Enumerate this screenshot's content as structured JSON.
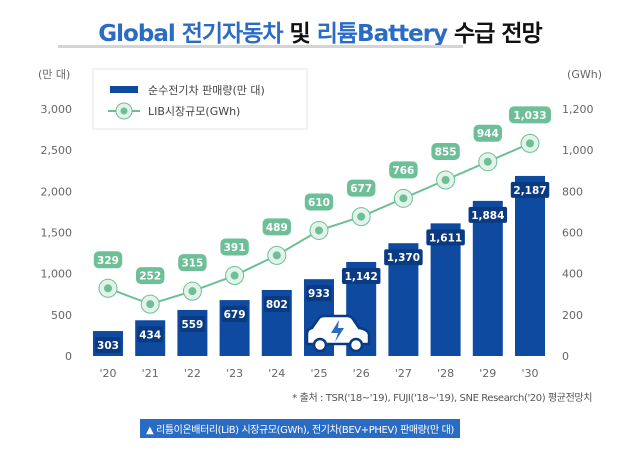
{
  "title": {
    "part1": "Global 전기자동차",
    "part2": " 및 ",
    "part3": "리튬Battery",
    "part4": " 수급 전망"
  },
  "chart_data": {
    "type": "bar+line",
    "categories": [
      "'20",
      "'21",
      "'22",
      "'23",
      "'24",
      "'25",
      "'26",
      "'27",
      "'28",
      "'29",
      "'30"
    ],
    "series": [
      {
        "name": "순수전기차 판매량(만 대)",
        "type": "bar",
        "axis": "left",
        "values": [
          303,
          434,
          559,
          679,
          802,
          933,
          1142,
          1370,
          1611,
          1884,
          2187
        ],
        "labels": [
          "303",
          "434",
          "559",
          "679",
          "802",
          "933",
          "1,142",
          "1,370",
          "1,611",
          "1,884",
          "2,187"
        ],
        "color": "#0d4aa0"
      },
      {
        "name": "LIB시장규모(GWh)",
        "type": "line",
        "axis": "right",
        "values": [
          329,
          252,
          315,
          391,
          489,
          610,
          677,
          766,
          855,
          944,
          1033
        ],
        "labels": [
          "329",
          "252",
          "315",
          "391",
          "489",
          "610",
          "677",
          "766",
          "855",
          "944",
          "1,033"
        ],
        "color": "#6dbf98"
      }
    ],
    "left_axis": {
      "unit": "(만 대)",
      "ylim": [
        0,
        3000
      ],
      "ticks": [
        "0",
        "500",
        "1,000",
        "1,500",
        "2,000",
        "2,500",
        "3,000"
      ]
    },
    "right_axis": {
      "unit": "(GWh)",
      "ylim": [
        0,
        1200
      ],
      "ticks": [
        "0",
        "200",
        "400",
        "600",
        "800",
        "1,000",
        "1,200"
      ]
    },
    "legend_placement": "top-left",
    "grid": false
  },
  "source": "* 출처 : TSR('18~'19), FUJI('18~'19), SNE Research('20) 평균전망치",
  "caption": "▲ 리튬이온배터리(LiB) 시장규모(GWh), 전기차(BEV+PHEV) 판매량(만 대)",
  "icons": {
    "car": "electric-car-icon"
  }
}
